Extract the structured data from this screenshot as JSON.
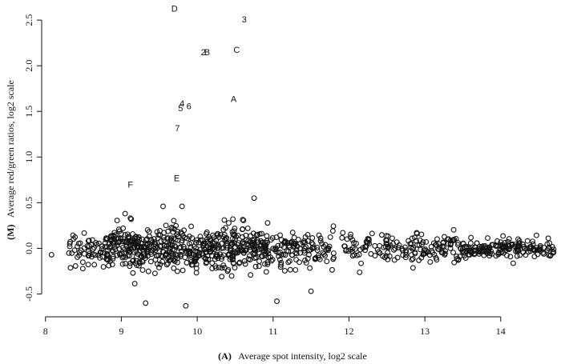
{
  "chart_data": {
    "type": "scatter",
    "title": "",
    "xlabel_prefix": "(A)",
    "xlabel": "Average spot intensity, log2 scale",
    "ylabel_prefix": "(M)",
    "ylabel": "Average red/green ratios, log2 scale",
    "xlim": [
      7.95,
      14.9
    ],
    "ylim": [
      -0.75,
      2.65
    ],
    "x_ticks": [
      8,
      9,
      10,
      11,
      12,
      13,
      14
    ],
    "x_tick_labels": [
      "8",
      "9",
      "10",
      "11",
      "12",
      "13",
      "14"
    ],
    "y_ticks": [
      -0.5,
      0.0,
      0.5,
      1.0,
      1.5,
      2.0,
      2.5
    ],
    "y_tick_labels": [
      "-0.5",
      "0.0",
      "0.5",
      "1.0",
      "1.5",
      "2.0",
      "2.5"
    ],
    "grid": false,
    "marker": "open-circle",
    "annotations": [
      {
        "text": "D",
        "x": 9.7,
        "y": 2.62
      },
      {
        "text": "3",
        "x": 10.62,
        "y": 2.5
      },
      {
        "text": "C",
        "x": 10.52,
        "y": 2.17
      },
      {
        "text": "2",
        "x": 10.08,
        "y": 2.14
      },
      {
        "text": "B",
        "x": 10.13,
        "y": 2.14
      },
      {
        "text": "A",
        "x": 10.48,
        "y": 1.63
      },
      {
        "text": "4",
        "x": 9.8,
        "y": 1.58
      },
      {
        "text": "5",
        "x": 9.78,
        "y": 1.53
      },
      {
        "text": "6",
        "x": 9.89,
        "y": 1.55
      },
      {
        "text": "7",
        "x": 9.74,
        "y": 1.31
      },
      {
        "text": "E",
        "x": 9.73,
        "y": 0.76
      },
      {
        "text": "F",
        "x": 9.12,
        "y": 0.69
      }
    ],
    "outliers": [
      {
        "x": 9.32,
        "y": -0.6
      },
      {
        "x": 9.85,
        "y": -0.63
      },
      {
        "x": 11.05,
        "y": -0.58
      },
      {
        "x": 10.75,
        "y": 0.55
      },
      {
        "x": 9.55,
        "y": 0.46
      },
      {
        "x": 9.8,
        "y": 0.46
      },
      {
        "x": 9.05,
        "y": 0.38
      },
      {
        "x": 11.5,
        "y": -0.47
      },
      {
        "x": 9.12,
        "y": 0.33
      },
      {
        "x": 8.08,
        "y": -0.07
      }
    ],
    "bulk_clusters": [
      {
        "xmin": 8.3,
        "xmax": 8.8,
        "ysd": 0.1,
        "n": 55
      },
      {
        "xmin": 8.8,
        "xmax": 10.0,
        "ysd": 0.12,
        "n": 320
      },
      {
        "xmin": 10.0,
        "xmax": 10.9,
        "ysd": 0.12,
        "n": 230
      },
      {
        "xmin": 10.9,
        "xmax": 11.8,
        "ysd": 0.11,
        "n": 130
      },
      {
        "xmin": 11.9,
        "xmax": 12.8,
        "ysd": 0.08,
        "n": 80
      },
      {
        "xmin": 12.8,
        "xmax": 13.5,
        "ysd": 0.08,
        "n": 85
      },
      {
        "xmin": 13.5,
        "xmax": 14.7,
        "ysd": 0.05,
        "n": 170
      }
    ]
  }
}
